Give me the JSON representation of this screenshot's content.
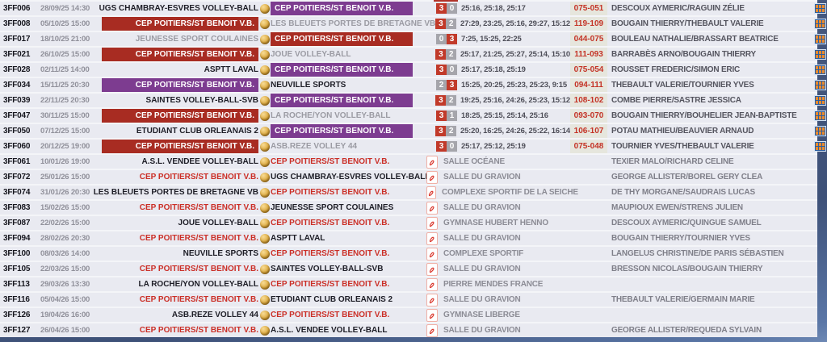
{
  "colors": {
    "cep_win_bg": "#a82c22",
    "cep_loss_bg": "#7d3c90",
    "cep_upcoming_text": "#cb2f27",
    "score_winner_bg": "#c13a2a",
    "score_loser_bg": "#a5a5ab",
    "points_text": "#c43326",
    "points_band_bg": "#e6e6dd",
    "row_bg": "#e9eaf1",
    "page_bg_blue": "#46597f"
  },
  "icons": {
    "between_teams": "volleyball-icon",
    "upcoming_file": "pdf-document-icon",
    "played_right": "match-sheet-icon"
  },
  "rows": [
    {
      "code": "3FF006",
      "datetime": "28/09/25 14:30",
      "home": "UGS CHAMBRAY-ESVRES VOLLEY-BALL",
      "home_style": "win-plain",
      "away": "CEP POITIERS/ST BENOIT V.B.",
      "away_style": "cep-loss",
      "played": true,
      "score_home": "3",
      "score_away": "0",
      "winner": "home",
      "sets": "25:16, 25:18, 25:17",
      "points": "075-051",
      "officials": "DESCOUX AYMERIC/RAGUIN ZÉLIE"
    },
    {
      "code": "3FF008",
      "datetime": "05/10/25 15:00",
      "home": "CEP POITIERS/ST BENOIT V.B.",
      "home_style": "cep-win",
      "away": "LES BLEUETS PORTES DE BRETAGNE VB",
      "away_style": "loss-plain",
      "played": true,
      "score_home": "3",
      "score_away": "2",
      "winner": "home",
      "sets": "27:29, 23:25, 25:16, 29:27, 15:12",
      "points": "119-109",
      "officials": "BOUGAIN THIERRY/THEBAULT VALERIE"
    },
    {
      "code": "3FF017",
      "datetime": "18/10/25 21:00",
      "home": "JEUNESSE SPORT COULAINES",
      "home_style": "loss-plain",
      "away": "CEP POITIERS/ST BENOIT V.B.",
      "away_style": "cep-win",
      "played": true,
      "score_home": "0",
      "score_away": "3",
      "winner": "away",
      "sets": "7:25, 15:25, 22:25",
      "points": "044-075",
      "officials": "BOULEAU NATHALIE/BRASSART BEATRICE"
    },
    {
      "code": "3FF021",
      "datetime": "26/10/25 15:00",
      "home": "CEP POITIERS/ST BENOIT V.B.",
      "home_style": "cep-win",
      "away": "JOUE VOLLEY-BALL",
      "away_style": "loss-plain",
      "played": true,
      "score_home": "3",
      "score_away": "2",
      "winner": "home",
      "sets": "25:17, 21:25, 25:27, 25:14, 15:10",
      "points": "111-093",
      "officials": "BARRABÈS ARNO/BOUGAIN THIERRY"
    },
    {
      "code": "3FF028",
      "datetime": "02/11/25 14:00",
      "home": "ASPTT LAVAL",
      "home_style": "win-plain",
      "away": "CEP POITIERS/ST BENOIT V.B.",
      "away_style": "cep-loss",
      "played": true,
      "score_home": "3",
      "score_away": "0",
      "winner": "home",
      "sets": "25:17, 25:18, 25:19",
      "points": "075-054",
      "officials": "ROUSSET FREDERIC/SIMON ERIC"
    },
    {
      "code": "3FF034",
      "datetime": "15/11/25 20:30",
      "home": "CEP POITIERS/ST BENOIT V.B.",
      "home_style": "cep-loss",
      "away": "NEUVILLE SPORTS",
      "away_style": "win-plain",
      "played": true,
      "score_home": "2",
      "score_away": "3",
      "winner": "away",
      "sets": "15:25, 20:25, 25:23, 25:23, 9:15",
      "points": "094-111",
      "officials": "THEBAULT VALERIE/TOURNIER YVES"
    },
    {
      "code": "3FF039",
      "datetime": "22/11/25 20:30",
      "home": "SAINTES VOLLEY-BALL-SVB",
      "home_style": "win-plain",
      "away": "CEP POITIERS/ST BENOIT V.B.",
      "away_style": "cep-loss",
      "played": true,
      "score_home": "3",
      "score_away": "2",
      "winner": "home",
      "sets": "19:25, 25:16, 24:26, 25:23, 15:12",
      "points": "108-102",
      "officials": "COMBE PIERRE/SASTRE JESSICA"
    },
    {
      "code": "3FF047",
      "datetime": "30/11/25 15:00",
      "home": "CEP POITIERS/ST BENOIT V.B.",
      "home_style": "cep-win",
      "away": "LA ROCHE/YON VOLLEY-BALL",
      "away_style": "loss-plain",
      "played": true,
      "score_home": "3",
      "score_away": "1",
      "winner": "home",
      "sets": "18:25, 25:15, 25:14, 25:16",
      "points": "093-070",
      "officials": "BOUGAIN THIERRY/BOUHELIER JEAN-BAPTISTE"
    },
    {
      "code": "3FF050",
      "datetime": "07/12/25 15:00",
      "home": "ETUDIANT CLUB ORLEANAIS 2",
      "home_style": "win-plain",
      "away": "CEP POITIERS/ST BENOIT V.B.",
      "away_style": "cep-loss",
      "played": true,
      "score_home": "3",
      "score_away": "2",
      "winner": "home",
      "sets": "25:20, 16:25, 24:26, 25:22, 16:14",
      "points": "106-107",
      "officials": "POTAU MATHIEU/BEAUVIER ARNAUD"
    },
    {
      "code": "3FF060",
      "datetime": "20/12/25 19:00",
      "home": "CEP POITIERS/ST BENOIT V.B.",
      "home_style": "cep-win",
      "away": "ASB.REZE VOLLEY 44",
      "away_style": "loss-plain",
      "played": true,
      "score_home": "3",
      "score_away": "0",
      "winner": "home",
      "sets": "25:17, 25:12, 25:19",
      "points": "075-048",
      "officials": "TOURNIER YVES/THEBAULT VALERIE"
    },
    {
      "code": "3FF061",
      "datetime": "10/01/26 19:00",
      "home": "A.S.L. VENDEE VOLLEY-BALL",
      "home_style": "next-plain",
      "away": "CEP POITIERS/ST BENOIT V.B.",
      "away_style": "cep-next",
      "played": false,
      "venue": "SALLE OCÉANE",
      "officials": "TEXIER MALO/RICHARD CELINE"
    },
    {
      "code": "3FF072",
      "datetime": "25/01/26 15:00",
      "home": "CEP POITIERS/ST BENOIT V.B.",
      "home_style": "cep-next",
      "away": "UGS CHAMBRAY-ESVRES VOLLEY-BALL",
      "away_style": "next-plain",
      "played": false,
      "venue": "SALLE DU GRAVION",
      "officials": "GEORGE ALLISTER/BOREL GERY CLEA"
    },
    {
      "code": "3FF074",
      "datetime": "31/01/26 20:30",
      "home": "LES BLEUETS PORTES DE BRETAGNE VB",
      "home_style": "next-plain",
      "away": "CEP POITIERS/ST BENOIT V.B.",
      "away_style": "cep-next",
      "played": false,
      "venue": "COMPLEXE SPORTIF DE LA SEICHE",
      "officials": "DE THY MORGANE/SAUDRAIS LUCAS"
    },
    {
      "code": "3FF083",
      "datetime": "15/02/26 15:00",
      "home": "CEP POITIERS/ST BENOIT V.B.",
      "home_style": "cep-next",
      "away": "JEUNESSE SPORT COULAINES",
      "away_style": "next-plain",
      "played": false,
      "venue": "SALLE DU GRAVION",
      "officials": "MAUPIOUX EWEN/STRENS JULIEN"
    },
    {
      "code": "3FF087",
      "datetime": "22/02/26 15:00",
      "home": "JOUE VOLLEY-BALL",
      "home_style": "next-plain",
      "away": "CEP POITIERS/ST BENOIT V.B.",
      "away_style": "cep-next",
      "played": false,
      "venue": "GYMNASE HUBERT HENNO",
      "officials": "DESCOUX AYMERIC/QUINGUE SAMUEL"
    },
    {
      "code": "3FF094",
      "datetime": "28/02/26 20:30",
      "home": "CEP POITIERS/ST BENOIT V.B.",
      "home_style": "cep-next",
      "away": "ASPTT LAVAL",
      "away_style": "next-plain",
      "played": false,
      "venue": "SALLE DU GRAVION",
      "officials": "BOUGAIN THIERRY/TOURNIER YVES"
    },
    {
      "code": "3FF100",
      "datetime": "08/03/26 14:00",
      "home": "NEUVILLE SPORTS",
      "home_style": "next-plain",
      "away": "CEP POITIERS/ST BENOIT V.B.",
      "away_style": "cep-next",
      "played": false,
      "venue": "COMPLEXE SPORTIF",
      "officials": "LANGELUS CHRISTINE/DE PARIS SÉBASTIEN"
    },
    {
      "code": "3FF105",
      "datetime": "22/03/26 15:00",
      "home": "CEP POITIERS/ST BENOIT V.B.",
      "home_style": "cep-next",
      "away": "SAINTES VOLLEY-BALL-SVB",
      "away_style": "next-plain",
      "played": false,
      "venue": "SALLE DU GRAVION",
      "officials": "BRESSON NICOLAS/BOUGAIN THIERRY"
    },
    {
      "code": "3FF113",
      "datetime": "29/03/26 13:30",
      "home": "LA ROCHE/YON VOLLEY-BALL",
      "home_style": "next-plain",
      "away": "CEP POITIERS/ST BENOIT V.B.",
      "away_style": "cep-next",
      "played": false,
      "venue": "PIERRE MENDES FRANCE",
      "officials": ""
    },
    {
      "code": "3FF116",
      "datetime": "05/04/26 15:00",
      "home": "CEP POITIERS/ST BENOIT V.B.",
      "home_style": "cep-next",
      "away": "ETUDIANT CLUB ORLEANAIS 2",
      "away_style": "next-plain",
      "played": false,
      "venue": "SALLE DU GRAVION",
      "officials": "THEBAULT VALERIE/GERMAIN MARIE"
    },
    {
      "code": "3FF126",
      "datetime": "19/04/26 16:00",
      "home": "ASB.REZE VOLLEY 44",
      "home_style": "next-plain",
      "away": "CEP POITIERS/ST BENOIT V.B.",
      "away_style": "cep-next",
      "played": false,
      "venue": "GYMNASE LIBERGE",
      "officials": ""
    },
    {
      "code": "3FF127",
      "datetime": "26/04/26 15:00",
      "home": "CEP POITIERS/ST BENOIT V.B.",
      "home_style": "cep-next",
      "away": "A.S.L. VENDEE VOLLEY-BALL",
      "away_style": "next-plain",
      "played": false,
      "venue": "SALLE DU GRAVION",
      "officials": "GEORGE ALLISTER/REQUEDA SYLVAIN"
    }
  ]
}
